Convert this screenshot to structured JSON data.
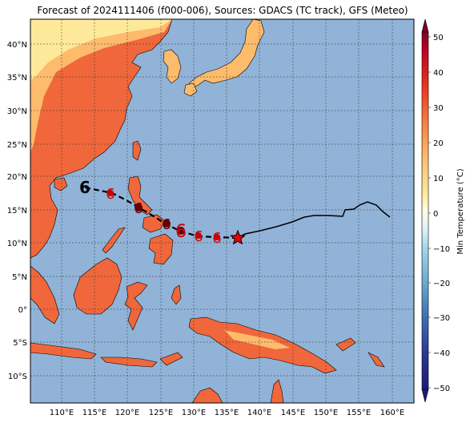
{
  "title": "Forecast of 2024111406 (f000-006), Sources: GDACS (TC track), GFS (Meteo)",
  "map": {
    "lon_ticks": [
      "110°E",
      "115°E",
      "120°E",
      "125°E",
      "130°E",
      "135°E",
      "140°E",
      "145°E",
      "150°E",
      "155°E",
      "160°E"
    ],
    "lat_ticks": [
      "40°N",
      "35°N",
      "30°N",
      "25°N",
      "20°N",
      "15°N",
      "10°N",
      "5°N",
      "0°",
      "5°S",
      "10°S"
    ],
    "ocean_color": "#91b3d8",
    "land_color": "#f0673b"
  },
  "colorbar": {
    "label": "Min Temperature (°C)",
    "ticks": [
      "50",
      "40",
      "30",
      "20",
      "10",
      "0",
      "−10",
      "−20",
      "−30",
      "−40",
      "−50"
    ],
    "colors": [
      "#7f0026",
      "#bb0026",
      "#e9341e",
      "#f87d3e",
      "#fdbb6c",
      "#fee99a",
      "#ffffe0",
      "#e0f3f8",
      "#a6d9ea",
      "#6aabd1",
      "#3b6fb2",
      "#2d3794",
      "#1b1a7c"
    ]
  },
  "track": {
    "icons": [
      {
        "label": "6",
        "color": "#000000"
      },
      {
        "label": "6",
        "color": "#cc0000"
      },
      {
        "label": "6",
        "color": "#660000"
      },
      {
        "label": "6",
        "color": "#660000"
      },
      {
        "label": "6",
        "color": "#cc0000"
      },
      {
        "label": "6",
        "color": "#cc0000"
      },
      {
        "label": "6",
        "color": "#cc0000"
      }
    ],
    "current_position_marker": "star-icon"
  }
}
